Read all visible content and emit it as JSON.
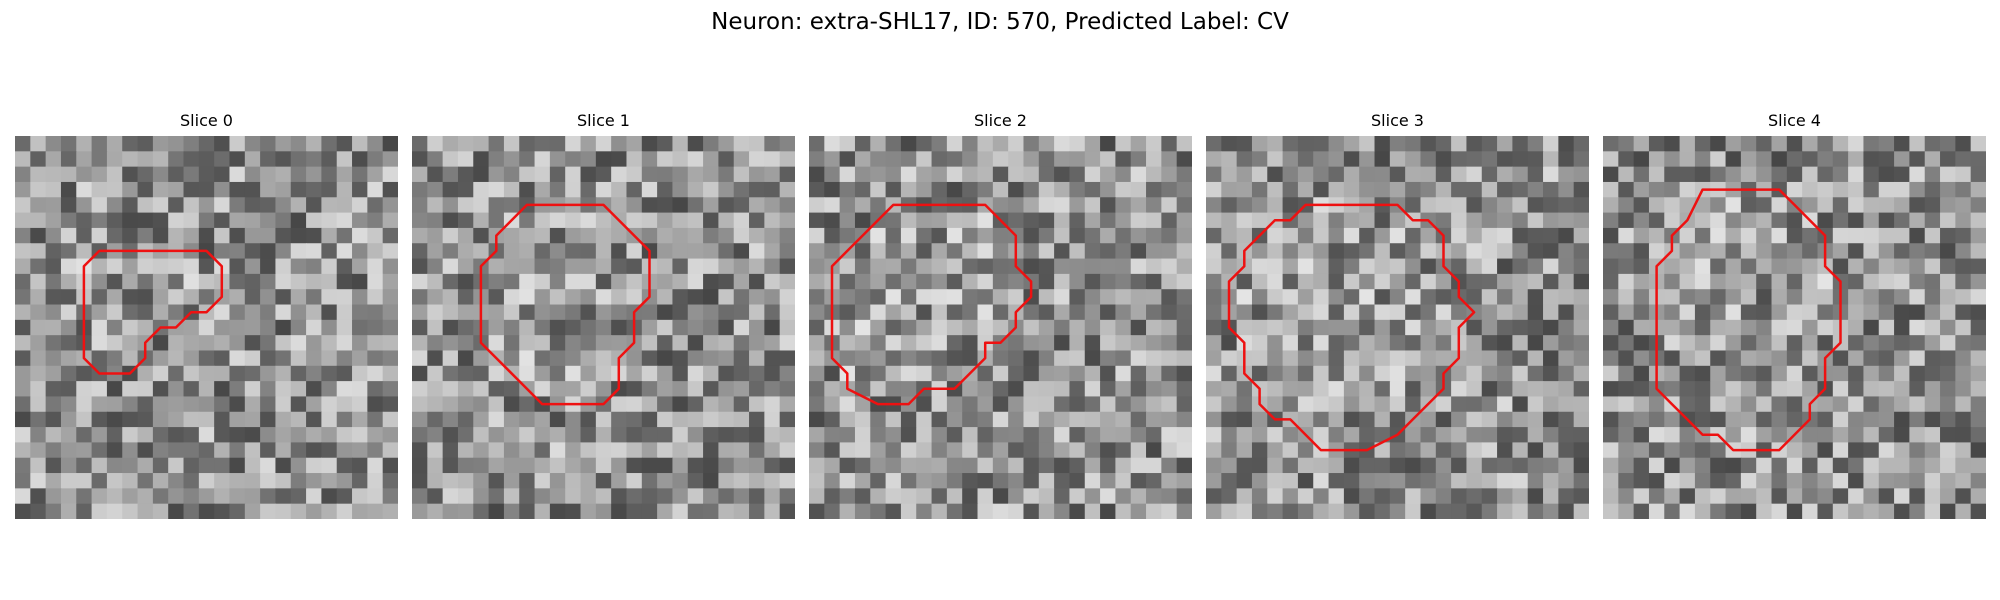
{
  "figure": {
    "title": "Neuron: extra-SHL17, ID: 570, Predicted Label: CV",
    "contour_color": "#ee1111",
    "panels": [
      {
        "title": "Slice 0",
        "seed": 17,
        "contour": [
          [
            8.5,
            7.5
          ],
          [
            12.5,
            7.5
          ],
          [
            13.5,
            8.5
          ],
          [
            13.5,
            10.5
          ],
          [
            12.5,
            11.5
          ],
          [
            11.5,
            11.5
          ],
          [
            10.5,
            12.5
          ],
          [
            9.5,
            12.5
          ],
          [
            8.5,
            13.5
          ],
          [
            8.5,
            14.5
          ],
          [
            7.5,
            15.5
          ],
          [
            5.5,
            15.5
          ],
          [
            4.5,
            14.5
          ],
          [
            4.5,
            8.5
          ],
          [
            5.5,
            7.5
          ]
        ]
      },
      {
        "title": "Slice 1",
        "seed": 29,
        "contour": [
          [
            7.5,
            4.5
          ],
          [
            12.5,
            4.5
          ],
          [
            15.5,
            7.5
          ],
          [
            15.5,
            10.5
          ],
          [
            14.5,
            11.5
          ],
          [
            14.5,
            13.5
          ],
          [
            13.5,
            14.5
          ],
          [
            13.5,
            16.5
          ],
          [
            12.5,
            17.5
          ],
          [
            8.5,
            17.5
          ],
          [
            5.5,
            14.5
          ],
          [
            4.5,
            13.5
          ],
          [
            4.5,
            8.5
          ],
          [
            5.5,
            7.5
          ],
          [
            5.5,
            6.5
          ]
        ]
      },
      {
        "title": "Slice 2",
        "seed": 41,
        "contour": [
          [
            5.5,
            4.5
          ],
          [
            11.5,
            4.5
          ],
          [
            12.5,
            5.5
          ],
          [
            13.5,
            6.5
          ],
          [
            13.5,
            8.5
          ],
          [
            14.5,
            9.5
          ],
          [
            14.5,
            10.5
          ],
          [
            13.5,
            11.5
          ],
          [
            13.5,
            12.5
          ],
          [
            12.5,
            13.5
          ],
          [
            11.5,
            13.5
          ],
          [
            11.5,
            14.5
          ],
          [
            9.5,
            16.5
          ],
          [
            7.5,
            16.5
          ],
          [
            6.5,
            17.5
          ],
          [
            4.5,
            17.5
          ],
          [
            2.5,
            16.5
          ],
          [
            2.5,
            15.5
          ],
          [
            1.5,
            14.5
          ],
          [
            1.5,
            8.5
          ],
          [
            2.5,
            7.5
          ],
          [
            3.5,
            6.5
          ]
        ]
      },
      {
        "title": "Slice 3",
        "seed": 53,
        "contour": [
          [
            6.5,
            4.5
          ],
          [
            12.5,
            4.5
          ],
          [
            13.5,
            5.5
          ],
          [
            14.5,
            5.5
          ],
          [
            15.5,
            6.5
          ],
          [
            15.5,
            8.5
          ],
          [
            16.5,
            9.5
          ],
          [
            16.5,
            10.5
          ],
          [
            17.5,
            11.5
          ],
          [
            16.5,
            12.5
          ],
          [
            16.5,
            14.5
          ],
          [
            15.5,
            15.5
          ],
          [
            15.5,
            16.5
          ],
          [
            14.5,
            17.5
          ],
          [
            13.5,
            18.5
          ],
          [
            12.5,
            19.5
          ],
          [
            10.5,
            20.5
          ],
          [
            7.5,
            20.5
          ],
          [
            6.5,
            19.5
          ],
          [
            5.5,
            18.5
          ],
          [
            4.5,
            18.5
          ],
          [
            3.5,
            17.5
          ],
          [
            3.5,
            16.5
          ],
          [
            2.5,
            15.5
          ],
          [
            2.5,
            13.5
          ],
          [
            1.5,
            12.5
          ],
          [
            1.5,
            9.5
          ],
          [
            2.5,
            8.5
          ],
          [
            2.5,
            7.5
          ],
          [
            3.5,
            6.5
          ],
          [
            4.5,
            5.5
          ],
          [
            5.5,
            5.5
          ]
        ]
      },
      {
        "title": "Slice 4",
        "seed": 67,
        "contour": [
          [
            6.5,
            3.5
          ],
          [
            11.5,
            3.5
          ],
          [
            12.5,
            4.5
          ],
          [
            13.5,
            5.5
          ],
          [
            14.5,
            6.5
          ],
          [
            14.5,
            8.5
          ],
          [
            15.5,
            9.5
          ],
          [
            15.5,
            11.5
          ],
          [
            15.5,
            13.5
          ],
          [
            14.5,
            14.5
          ],
          [
            14.5,
            16.5
          ],
          [
            13.5,
            17.5
          ],
          [
            13.5,
            18.5
          ],
          [
            12.5,
            19.5
          ],
          [
            11.5,
            20.5
          ],
          [
            8.5,
            20.5
          ],
          [
            7.5,
            19.5
          ],
          [
            6.5,
            19.5
          ],
          [
            5.5,
            18.5
          ],
          [
            4.5,
            17.5
          ],
          [
            3.5,
            16.5
          ],
          [
            3.5,
            14.5
          ],
          [
            3.5,
            11.5
          ],
          [
            3.5,
            8.5
          ],
          [
            4.5,
            7.5
          ],
          [
            4.5,
            6.5
          ],
          [
            5.5,
            5.5
          ]
        ]
      }
    ]
  }
}
